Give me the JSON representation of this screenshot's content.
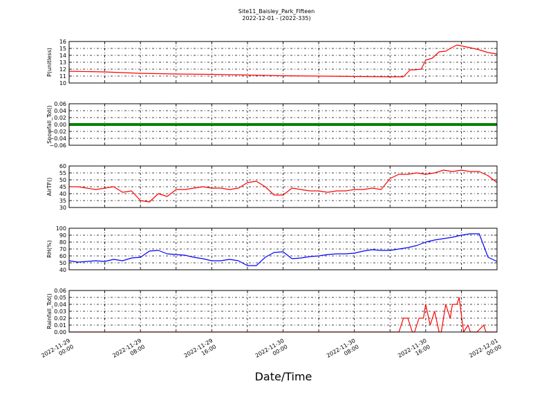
{
  "figure": {
    "title": "Site11_Baisley_Park_Fifteen",
    "subtitle": "2022-12-01 - (2022-335)",
    "xlabel": "Date/Time"
  },
  "chart_data": [
    {
      "type": "line",
      "ylabel": "P(unitless)",
      "ylim": [
        10,
        16
      ],
      "yticks": [
        "10",
        "11",
        "12",
        "13",
        "14",
        "15",
        "16"
      ],
      "xlim": [
        "2022-11-29 00:00",
        "2022-12-01 00:00"
      ],
      "grid": true,
      "color": "#ff0000",
      "series": [
        {
          "x": [
            "2022-11-29 00:00",
            "2022-11-29 04:00",
            "2022-11-29 08:00",
            "2022-11-29 12:00",
            "2022-11-29 16:00",
            "2022-11-29 20:00",
            "2022-11-30 00:00",
            "2022-11-30 04:00",
            "2022-11-30 08:00",
            "2022-11-30 12:00",
            "2022-11-30 13:30",
            "2022-11-30 14:15",
            "2022-11-30 14:45",
            "2022-11-30 15:30",
            "2022-11-30 16:00",
            "2022-11-30 16:45",
            "2022-11-30 17:30",
            "2022-11-30 18:15",
            "2022-11-30 18:45",
            "2022-11-30 19:30",
            "2022-11-30 20:15",
            "2022-11-30 21:00",
            "2022-11-30 22:00",
            "2022-11-30 23:00",
            "2022-12-01 00:00"
          ],
          "values": [
            11.7,
            11.6,
            11.4,
            11.3,
            11.25,
            11.15,
            11.05,
            11.0,
            10.95,
            10.9,
            10.9,
            11.9,
            11.9,
            12.0,
            13.3,
            13.6,
            14.5,
            14.6,
            15.0,
            15.5,
            15.3,
            15.1,
            14.8,
            14.4,
            14.2
          ]
        }
      ]
    },
    {
      "type": "line",
      "ylabel": "Snowfall_Tot()",
      "ylim": [
        -0.06,
        0.06
      ],
      "yticks": [
        "−0.06",
        "−0.04",
        "−0.02",
        "0.00",
        "0.02",
        "0.04",
        "0.06"
      ],
      "xlim": [
        "2022-11-29 00:00",
        "2022-12-01 00:00"
      ],
      "grid": true,
      "color": "#008000",
      "series": [
        {
          "x": [
            "2022-11-29 00:00",
            "2022-12-01 00:00"
          ],
          "values": [
            0.0,
            0.0
          ]
        }
      ]
    },
    {
      "type": "line",
      "ylabel": "AirTF()",
      "ylim": [
        30,
        60
      ],
      "yticks": [
        "30",
        "35",
        "40",
        "45",
        "50",
        "55",
        "60"
      ],
      "xlim": [
        "2022-11-29 00:00",
        "2022-12-01 00:00"
      ],
      "grid": true,
      "color": "#ff0000",
      "series": [
        {
          "x": [
            "2022-11-29 00:00",
            "2022-11-29 01:00",
            "2022-11-29 02:00",
            "2022-11-29 03:00",
            "2022-11-29 04:00",
            "2022-11-29 05:00",
            "2022-11-29 06:00",
            "2022-11-29 07:00",
            "2022-11-29 08:00",
            "2022-11-29 09:00",
            "2022-11-29 10:00",
            "2022-11-29 11:00",
            "2022-11-29 12:00",
            "2022-11-29 13:00",
            "2022-11-29 14:00",
            "2022-11-29 15:00",
            "2022-11-29 16:00",
            "2022-11-29 17:00",
            "2022-11-29 18:00",
            "2022-11-29 19:00",
            "2022-11-29 20:00",
            "2022-11-29 21:00",
            "2022-11-29 22:00",
            "2022-11-29 23:00",
            "2022-11-30 00:00",
            "2022-11-30 01:00",
            "2022-11-30 02:00",
            "2022-11-30 03:00",
            "2022-11-30 04:00",
            "2022-11-30 05:00",
            "2022-11-30 06:00",
            "2022-11-30 07:00",
            "2022-11-30 08:00",
            "2022-11-30 09:00",
            "2022-11-30 10:00",
            "2022-11-30 11:00",
            "2022-11-30 12:00",
            "2022-11-30 13:00",
            "2022-11-30 14:00",
            "2022-11-30 15:00",
            "2022-11-30 16:00",
            "2022-11-30 17:00",
            "2022-11-30 18:00",
            "2022-11-30 19:00",
            "2022-11-30 20:00",
            "2022-11-30 21:00",
            "2022-11-30 22:00",
            "2022-11-30 23:00",
            "2022-12-01 00:00"
          ],
          "values": [
            45,
            45,
            44,
            43,
            44,
            45,
            41,
            42,
            35,
            34,
            40,
            38,
            43,
            43,
            44,
            45,
            44,
            44,
            43,
            44,
            48,
            49,
            45,
            39,
            39,
            44,
            43,
            42,
            42,
            41,
            42,
            42,
            43,
            43,
            44,
            43,
            51,
            54,
            54,
            55,
            54,
            55,
            57,
            56,
            57,
            56,
            56,
            53,
            48
          ]
        }
      ]
    },
    {
      "type": "line",
      "ylabel": "RH(%)",
      "ylim": [
        40,
        100
      ],
      "yticks": [
        "40",
        "50",
        "60",
        "70",
        "80",
        "90",
        "100"
      ],
      "xlim": [
        "2022-11-29 00:00",
        "2022-12-01 00:00"
      ],
      "grid": true,
      "color": "#0000ff",
      "series": [
        {
          "x": [
            "2022-11-29 00:00",
            "2022-11-29 01:00",
            "2022-11-29 02:00",
            "2022-11-29 03:00",
            "2022-11-29 04:00",
            "2022-11-29 05:00",
            "2022-11-29 06:00",
            "2022-11-29 07:00",
            "2022-11-29 08:00",
            "2022-11-29 09:00",
            "2022-11-29 10:00",
            "2022-11-29 11:00",
            "2022-11-29 12:00",
            "2022-11-29 13:00",
            "2022-11-29 14:00",
            "2022-11-29 15:00",
            "2022-11-29 16:00",
            "2022-11-29 17:00",
            "2022-11-29 18:00",
            "2022-11-29 19:00",
            "2022-11-29 20:00",
            "2022-11-29 21:00",
            "2022-11-29 22:00",
            "2022-11-29 23:00",
            "2022-11-30 00:00",
            "2022-11-30 01:00",
            "2022-11-30 02:00",
            "2022-11-30 03:00",
            "2022-11-30 04:00",
            "2022-11-30 05:00",
            "2022-11-30 06:00",
            "2022-11-30 07:00",
            "2022-11-30 08:00",
            "2022-11-30 09:00",
            "2022-11-30 10:00",
            "2022-11-30 11:00",
            "2022-11-30 12:00",
            "2022-11-30 13:00",
            "2022-11-30 14:00",
            "2022-11-30 15:00",
            "2022-11-30 16:00",
            "2022-11-30 17:00",
            "2022-11-30 18:00",
            "2022-11-30 19:00",
            "2022-11-30 20:00",
            "2022-11-30 21:00",
            "2022-11-30 22:00",
            "2022-11-30 23:00",
            "2022-12-01 00:00"
          ],
          "values": [
            53,
            51,
            52,
            53,
            52,
            55,
            53,
            57,
            58,
            67,
            68,
            63,
            62,
            61,
            58,
            56,
            53,
            53,
            55,
            53,
            46,
            46,
            58,
            65,
            66,
            56,
            57,
            59,
            60,
            62,
            63,
            63,
            64,
            67,
            69,
            68,
            68,
            70,
            72,
            75,
            80,
            83,
            85,
            87,
            90,
            92,
            92,
            58,
            52
          ]
        }
      ]
    },
    {
      "type": "line",
      "ylabel": "Rainfall_Tot()",
      "ylim": [
        0.0,
        0.06
      ],
      "yticks": [
        "0.00",
        "0.01",
        "0.02",
        "0.03",
        "0.04",
        "0.05",
        "0.06"
      ],
      "xlim": [
        "2022-11-29 00:00",
        "2022-12-01 00:00"
      ],
      "grid": true,
      "color": "#ff0000",
      "xticks": [
        "2022-11-29 00:00",
        "2022-11-29 08:00",
        "2022-11-29 16:00",
        "2022-11-30 00:00",
        "2022-11-30 08:00",
        "2022-11-30 16:00",
        "2022-12-01 00:00"
      ],
      "series": [
        {
          "x": [
            "2022-11-29 00:00",
            "2022-11-30 13:00",
            "2022-11-30 13:30",
            "2022-11-30 14:00",
            "2022-11-30 14:30",
            "2022-11-30 14:45",
            "2022-11-30 15:15",
            "2022-11-30 15:45",
            "2022-11-30 16:00",
            "2022-11-30 16:30",
            "2022-11-30 17:00",
            "2022-11-30 17:30",
            "2022-11-30 17:45",
            "2022-11-30 18:15",
            "2022-11-30 18:45",
            "2022-11-30 19:00",
            "2022-11-30 19:30",
            "2022-11-30 19:45",
            "2022-11-30 20:15",
            "2022-11-30 20:45",
            "2022-11-30 21:00",
            "2022-11-30 21:15",
            "2022-11-30 21:45",
            "2022-11-30 22:30",
            "2022-11-30 22:45",
            "2022-11-30 23:00",
            "2022-12-01 00:00"
          ],
          "values": [
            0.0,
            0.0,
            0.02,
            0.02,
            0.0,
            0.0,
            0.02,
            0.02,
            0.04,
            0.01,
            0.03,
            0.0,
            0.0,
            0.04,
            0.02,
            0.04,
            0.04,
            0.05,
            0.0,
            0.01,
            0.0,
            0.0,
            0.0,
            0.01,
            0.0,
            0.0,
            0.0
          ]
        }
      ]
    }
  ]
}
